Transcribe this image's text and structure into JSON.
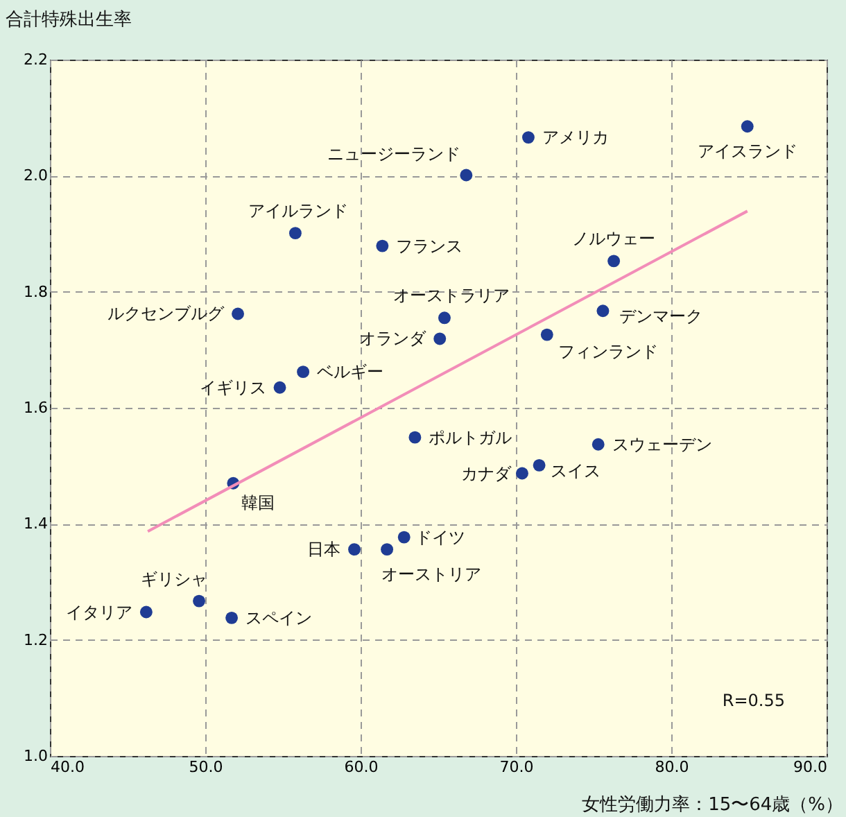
{
  "chart_data": {
    "type": "scatter",
    "xlabel": "女性労働力率：15〜64歳（%）",
    "ylabel": "合計特殊出生率",
    "xlim": [
      40,
      90
    ],
    "ylim": [
      1.0,
      2.2
    ],
    "xticks": [
      {
        "value": 40,
        "label": "40.0"
      },
      {
        "value": 50,
        "label": "50.0"
      },
      {
        "value": 60,
        "label": "60.0"
      },
      {
        "value": 70,
        "label": "70.0"
      },
      {
        "value": 80,
        "label": "80.0"
      },
      {
        "value": 90,
        "label": "90.0"
      }
    ],
    "yticks": [
      {
        "value": 1.0,
        "label": "1.0"
      },
      {
        "value": 1.2,
        "label": "1.2"
      },
      {
        "value": 1.4,
        "label": "1.4"
      },
      {
        "value": 1.6,
        "label": "1.6"
      },
      {
        "value": 1.8,
        "label": "1.8"
      },
      {
        "value": 2.0,
        "label": "2.0"
      },
      {
        "value": 2.2,
        "label": "2.2"
      }
    ],
    "grid": true,
    "series": [
      {
        "color": "#1f3c94",
        "marker": "circle",
        "x": [
          84.9,
          70.8,
          66.8,
          55.8,
          61.4,
          76.3,
          52.1,
          65.4,
          75.6,
          72.0,
          65.1,
          56.3,
          54.8,
          63.5,
          75.3,
          71.5,
          70.4,
          51.8,
          62.8,
          59.6,
          61.7,
          49.6,
          46.2,
          51.7
        ],
        "values": [
          2.085,
          2.066,
          2.001,
          1.901,
          1.879,
          1.853,
          1.762,
          1.755,
          1.767,
          1.726,
          1.719,
          1.662,
          1.635,
          1.549,
          1.537,
          1.501,
          1.487,
          1.47,
          1.377,
          1.356,
          1.356,
          1.267,
          1.248,
          1.238
        ]
      },
      {
        "type": "line",
        "color": "#f28db8",
        "line_style": "solid",
        "x": [
          46.3,
          84.9
        ],
        "values": [
          1.387,
          1.939
        ]
      }
    ],
    "annotations": [
      {
        "text": "アイスランド",
        "x": 84.9,
        "y": 2.085
      },
      {
        "text": "アメリカ",
        "x": 70.8,
        "y": 2.066
      },
      {
        "text": "ニュージーランド",
        "x": 66.8,
        "y": 2.001
      },
      {
        "text": "アイルランド",
        "x": 55.8,
        "y": 1.901
      },
      {
        "text": "フランス",
        "x": 61.4,
        "y": 1.879
      },
      {
        "text": "ノルウェー",
        "x": 76.3,
        "y": 1.853
      },
      {
        "text": "ルクセンブルグ",
        "x": 52.1,
        "y": 1.762
      },
      {
        "text": "オーストラリア",
        "x": 65.4,
        "y": 1.755
      },
      {
        "text": "デンマーク",
        "x": 75.6,
        "y": 1.767
      },
      {
        "text": "フィンランド",
        "x": 72.0,
        "y": 1.726
      },
      {
        "text": "オランダ",
        "x": 65.1,
        "y": 1.719
      },
      {
        "text": "ベルギー",
        "x": 56.3,
        "y": 1.662
      },
      {
        "text": "イギリス",
        "x": 54.8,
        "y": 1.635
      },
      {
        "text": "ポルトガル",
        "x": 63.5,
        "y": 1.549
      },
      {
        "text": "スウェーデン",
        "x": 75.3,
        "y": 1.537
      },
      {
        "text": "スイス",
        "x": 71.5,
        "y": 1.501
      },
      {
        "text": "カナダ",
        "x": 70.4,
        "y": 1.487
      },
      {
        "text": "韓国",
        "x": 51.8,
        "y": 1.47
      },
      {
        "text": "ドイツ",
        "x": 62.8,
        "y": 1.377
      },
      {
        "text": "日本",
        "x": 59.6,
        "y": 1.356
      },
      {
        "text": "オーストリア",
        "x": 61.7,
        "y": 1.356
      },
      {
        "text": "ギリシャ",
        "x": 49.6,
        "y": 1.267
      },
      {
        "text": "イタリア",
        "x": 46.2,
        "y": 1.248
      },
      {
        "text": "スペイン",
        "x": 51.7,
        "y": 1.238
      },
      "R=0.55"
    ]
  }
}
